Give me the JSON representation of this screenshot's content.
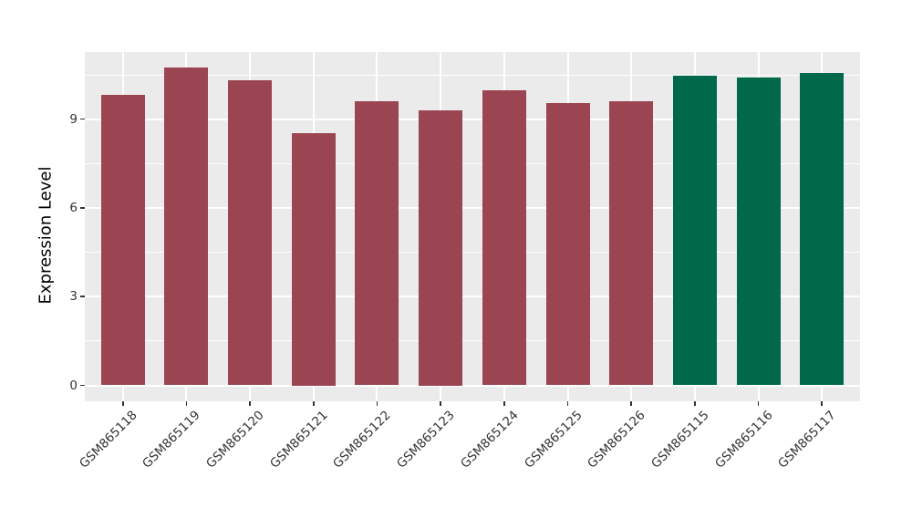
{
  "chart_data": {
    "type": "bar",
    "title": "",
    "xlabel": "",
    "ylabel": "Expression Level",
    "categories": [
      "GSM865118",
      "GSM865119",
      "GSM865120",
      "GSM865121",
      "GSM865122",
      "GSM865123",
      "GSM865124",
      "GSM865125",
      "GSM865126",
      "GSM865115",
      "GSM865116",
      "GSM865117"
    ],
    "values": [
      9.83,
      10.74,
      10.32,
      8.54,
      9.61,
      9.3,
      9.99,
      9.56,
      9.61,
      10.49,
      10.43,
      10.58
    ],
    "bar_colors": [
      "#9B4452",
      "#9B4452",
      "#9B4452",
      "#9B4452",
      "#9B4452",
      "#9B4452",
      "#9B4452",
      "#9B4452",
      "#9B4452",
      "#00694A",
      "#00694A",
      "#00694A"
    ],
    "group_colors": {
      "red_group": "#9B4452",
      "green_group": "#00694A"
    },
    "yticks": [
      0,
      3,
      6,
      9
    ],
    "ytick_labels": [
      "0",
      "3",
      "6",
      "9"
    ],
    "minor_yticks": [
      1.5,
      4.5,
      7.5,
      10.5
    ],
    "ylim": [
      -0.54,
      11.28
    ],
    "x_tick_label_rotation_deg": 45,
    "grid": "major-and-minor",
    "legend_position": "none",
    "panel_background": "#EBEBEB",
    "grid_color": "#FFFFFF"
  }
}
